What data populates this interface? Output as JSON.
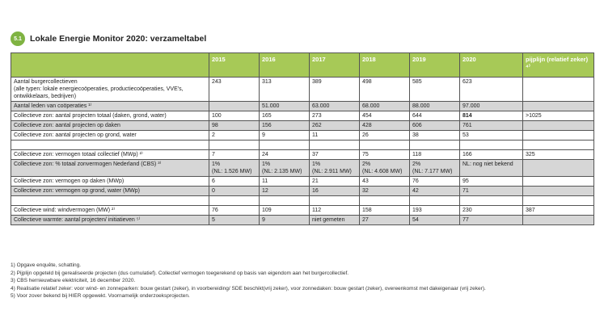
{
  "header": {
    "badge": "5.1",
    "title": "Lokale Energie Monitor 2020: verzameltabel"
  },
  "table": {
    "columns": [
      "",
      "2015",
      "2016",
      "2017",
      "2018",
      "2019",
      "2020",
      "pijplijn (relatief zeker) ⁴⁾"
    ],
    "rows": [
      {
        "label": "Aantal burgercollectieven",
        "sub": "(alle typen: lokale energiecoöperaties, productiecoöperaties, VVE's, ontwikkelaars, bedrijven)",
        "cells": [
          [
            "243"
          ],
          [
            "313"
          ],
          [
            "389"
          ],
          [
            "498"
          ],
          [
            "585"
          ],
          [
            "623"
          ],
          [
            ""
          ]
        ],
        "shaded": false
      },
      {
        "label": "Aantal leden van coöperaties ¹⁾",
        "cells": [
          [
            ""
          ],
          [
            "51.000"
          ],
          [
            "63.000"
          ],
          [
            "68.000"
          ],
          [
            "88.000"
          ],
          [
            "97.000"
          ],
          [
            ""
          ]
        ],
        "shaded": true
      },
      {
        "label": "Collectieve zon: aantal projecten totaal  (daken, grond, water)",
        "cells": [
          [
            "100"
          ],
          [
            "165"
          ],
          [
            "273"
          ],
          [
            "454"
          ],
          [
            "644"
          ],
          [
            "814"
          ],
          [
            ">1025"
          ]
        ],
        "shaded": false,
        "bold_col": 5
      },
      {
        "label": "Collectieve zon: aantal projecten op daken",
        "cells": [
          [
            "98"
          ],
          [
            "156"
          ],
          [
            "262"
          ],
          [
            "428"
          ],
          [
            "606"
          ],
          [
            "761"
          ],
          [
            ""
          ]
        ],
        "shaded": true
      },
      {
        "label": "Collectieve zon: aantal projecten op grond, water",
        "cells": [
          [
            "2"
          ],
          [
            "9"
          ],
          [
            "11"
          ],
          [
            "26"
          ],
          [
            "38"
          ],
          [
            "53"
          ],
          [
            ""
          ]
        ],
        "shaded": false
      },
      {
        "label": "",
        "cells": [
          [
            ""
          ],
          [
            ""
          ],
          [
            ""
          ],
          [
            ""
          ],
          [
            ""
          ],
          [
            ""
          ],
          [
            ""
          ]
        ],
        "shaded": false,
        "blank": true
      },
      {
        "label": "Collectieve zon: vermogen totaal collectief (MWp) ²⁾",
        "cells": [
          [
            "7"
          ],
          [
            "24"
          ],
          [
            "37"
          ],
          [
            "75"
          ],
          [
            "118"
          ],
          [
            "166"
          ],
          [
            "325"
          ]
        ],
        "shaded": false
      },
      {
        "label": "Collectieve zon: % totaal zonvermogen Nederland (CBS) ³⁾",
        "cells": [
          [
            "1%",
            "(NL: 1.526 MW)"
          ],
          [
            "1%",
            "(NL: 2.135 MW)"
          ],
          [
            "1%",
            "(NL: 2.911 MW)"
          ],
          [
            "2%",
            "(NL: 4.608 MW)"
          ],
          [
            "2%",
            "(NL: 7.177 MW)"
          ],
          [
            "NL: nog niet bekend"
          ],
          [
            ""
          ]
        ],
        "shaded": true
      },
      {
        "label": "Collectieve zon: vermogen op daken (MWp)",
        "cells": [
          [
            "6"
          ],
          [
            "11"
          ],
          [
            "21"
          ],
          [
            "43"
          ],
          [
            "76"
          ],
          [
            "95"
          ],
          [
            ""
          ]
        ],
        "shaded": false
      },
      {
        "label": "Collectieve zon: vermogen op grond, water (MWp)",
        "cells": [
          [
            "0"
          ],
          [
            "12"
          ],
          [
            "16"
          ],
          [
            "32"
          ],
          [
            "42"
          ],
          [
            "71"
          ],
          [
            ""
          ]
        ],
        "shaded": true
      },
      {
        "label": "",
        "cells": [
          [
            ""
          ],
          [
            ""
          ],
          [
            ""
          ],
          [
            ""
          ],
          [
            ""
          ],
          [
            ""
          ],
          [
            ""
          ]
        ],
        "shaded": false,
        "blank": true
      },
      {
        "label": "Collectieve wind: windvermogen (MW) ²⁾",
        "cells": [
          [
            "76"
          ],
          [
            "109"
          ],
          [
            "112"
          ],
          [
            "158"
          ],
          [
            "193"
          ],
          [
            "230"
          ],
          [
            "387"
          ]
        ],
        "shaded": false
      },
      {
        "label": "Collectieve warmte: aantal projecten/ initiatieven ⁵⁾",
        "cells": [
          [
            "5"
          ],
          [
            "9"
          ],
          [
            "niet gemeten"
          ],
          [
            "27"
          ],
          [
            "54"
          ],
          [
            "77"
          ],
          [
            ""
          ]
        ],
        "shaded": true
      }
    ]
  },
  "footnotes": [
    "1) Opgave enquête, schatting.",
    "2) Pijplijn opgeteld bij gerealiseerde projecten (dus cumulatief). Collectief vermogen toegerekend op basis van eigendom aan het burgercollectief.",
    "3) CBS hernieuwbare elektriciteit, 16 december 2020.",
    "4) Realisatie relatief zeker: voor wind- en zonneparken: bouw gestart (zeker), in voorbereiding/ SDE beschikt(vrij zeker), voor zonnedaken: bouw gestart (zeker), overeenkomst met dakeigenaar (vrij zeker).",
    "5) Voor zover bekend bij HIER opgewekt. Voornamelijk onderzoeksprojecten."
  ]
}
